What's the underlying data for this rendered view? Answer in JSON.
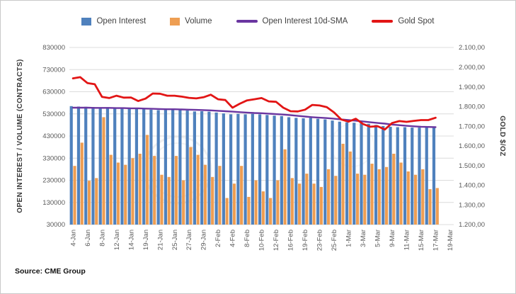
{
  "source": {
    "text": "Source: CME Group"
  },
  "legend": {
    "items": [
      {
        "label": "Open Interest",
        "type": "bar",
        "color": "#4f81bd"
      },
      {
        "label": "Volume",
        "type": "bar",
        "color": "#ee9e53"
      },
      {
        "label": "Open Interest 10d-SMA",
        "type": "line",
        "color": "#6a35a0"
      },
      {
        "label": "Gold Spot",
        "type": "line",
        "color": "#e21515"
      }
    ]
  },
  "chart_data": {
    "type": "bar",
    "subtype": "clustered bars with two overlay lines, dual y-axes",
    "grid": true,
    "legend_position": "top",
    "left_axis": {
      "label": "OPEN INTEREST / VOLUME (CONTRACTS)",
      "min": 30000,
      "max": 830000,
      "ticks": [
        830000,
        730000,
        630000,
        530000,
        430000,
        330000,
        230000,
        130000,
        30000
      ]
    },
    "right_axis": {
      "label": "GOLD $/OZ",
      "min": 1200,
      "max": 2100,
      "ticks": [
        {
          "label": "2.100,00",
          "value": 2100
        },
        {
          "label": "2.000,00",
          "value": 2000
        },
        {
          "label": "1.900,00",
          "value": 1900
        },
        {
          "label": "1.800,00",
          "value": 1800
        },
        {
          "label": "1.700,00",
          "value": 1700
        },
        {
          "label": "1.600,00",
          "value": 1600
        },
        {
          "label": "1.500,00",
          "value": 1500
        },
        {
          "label": "1.400,00",
          "value": 1400
        },
        {
          "label": "1.300,00",
          "value": 1300
        },
        {
          "label": "1.200,00",
          "value": 1200
        }
      ]
    },
    "x_tick_labels": [
      "4-Jan",
      "6-Jan",
      "8-Jan",
      "12-Jan",
      "14-Jan",
      "19-Jan",
      "21-Jan",
      "25-Jan",
      "27-Jan",
      "29-Jan",
      "2-Feb",
      "4-Feb",
      "8-Feb",
      "10-Feb",
      "12-Feb",
      "16-Feb",
      "19-Feb",
      "23-Feb",
      "25-Feb",
      "1-Mar",
      "3-Mar",
      "5-Mar",
      "9-Mar",
      "11-Mar",
      "15-Mar",
      "17-Mar",
      "19-Mar"
    ],
    "dates": [
      "4-Jan",
      "5-Jan",
      "6-Jan",
      "7-Jan",
      "8-Jan",
      "11-Jan",
      "12-Jan",
      "13-Jan",
      "14-Jan",
      "15-Jan",
      "19-Jan",
      "20-Jan",
      "21-Jan",
      "22-Jan",
      "25-Jan",
      "26-Jan",
      "27-Jan",
      "28-Jan",
      "29-Jan",
      "1-Feb",
      "2-Feb",
      "3-Feb",
      "4-Feb",
      "5-Feb",
      "8-Feb",
      "9-Feb",
      "10-Feb",
      "11-Feb",
      "12-Feb",
      "16-Feb",
      "17-Feb",
      "18-Feb",
      "19-Feb",
      "22-Feb",
      "23-Feb",
      "24-Feb",
      "25-Feb",
      "26-Feb",
      "1-Mar",
      "2-Mar",
      "3-Mar",
      "4-Mar",
      "5-Mar",
      "8-Mar",
      "9-Mar",
      "10-Mar",
      "11-Mar",
      "12-Mar",
      "15-Mar",
      "16-Mar",
      "17-Mar"
    ],
    "series": [
      {
        "name": "Open Interest",
        "type": "bar",
        "axis": "left",
        "color": "#4f81bd",
        "values": [
          565000,
          563000,
          562000,
          561000,
          558000,
          560000,
          558000,
          557000,
          556000,
          555000,
          552000,
          549000,
          547000,
          548000,
          550000,
          548000,
          545000,
          541000,
          542000,
          540000,
          536000,
          532000,
          528000,
          530000,
          528000,
          530000,
          528000,
          525000,
          522000,
          520000,
          515000,
          512000,
          510000,
          512000,
          508000,
          505000,
          500000,
          495000,
          492000,
          490000,
          488000,
          485000,
          480000,
          475000,
          472000,
          470000,
          470000,
          468000,
          468000,
          470000,
          472000
        ]
      },
      {
        "name": "Volume",
        "type": "bar",
        "axis": "left",
        "color": "#ee9e53",
        "values": [
          295000,
          400000,
          228000,
          240000,
          515000,
          345000,
          310000,
          300000,
          330000,
          350000,
          435000,
          340000,
          255000,
          245000,
          340000,
          230000,
          380000,
          345000,
          300000,
          245000,
          295000,
          150000,
          215000,
          295000,
          155000,
          230000,
          180000,
          150000,
          230000,
          370000,
          240000,
          215000,
          260000,
          215000,
          200000,
          280000,
          250000,
          395000,
          360000,
          260000,
          255000,
          305000,
          280000,
          290000,
          350000,
          310000,
          270000,
          255000,
          280000,
          190000,
          195000
        ]
      },
      {
        "name": "Open Interest 10d-SMA",
        "type": "line",
        "axis": "left",
        "color": "#6a35a0",
        "values": [
          558000,
          558000,
          558000,
          557000,
          557000,
          557000,
          556000,
          556000,
          555000,
          555000,
          554000,
          553000,
          552000,
          551000,
          551000,
          550000,
          549000,
          548000,
          547000,
          546000,
          544000,
          542000,
          540000,
          538000,
          536000,
          534000,
          533000,
          531000,
          529000,
          527000,
          524000,
          521000,
          518000,
          515000,
          513000,
          511000,
          508000,
          505000,
          502000,
          499000,
          496000,
          492000,
          489000,
          486000,
          482000,
          479000,
          476000,
          474000,
          472000,
          471000,
          470000
        ]
      },
      {
        "name": "Gold Spot",
        "type": "line",
        "axis": "right",
        "color": "#e21515",
        "values": [
          1943,
          1949,
          1919,
          1913,
          1849,
          1843,
          1855,
          1845,
          1846,
          1828,
          1840,
          1866,
          1865,
          1855,
          1855,
          1850,
          1844,
          1841,
          1847,
          1860,
          1837,
          1833,
          1794,
          1814,
          1831,
          1837,
          1843,
          1826,
          1824,
          1794,
          1776,
          1775,
          1784,
          1808,
          1805,
          1797,
          1770,
          1734,
          1723,
          1738,
          1711,
          1697,
          1700,
          1683,
          1716,
          1726,
          1722,
          1727,
          1731,
          1731,
          1743
        ]
      }
    ]
  }
}
